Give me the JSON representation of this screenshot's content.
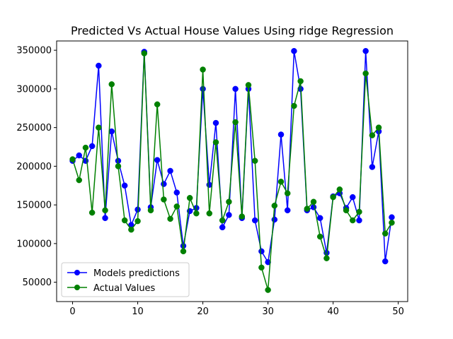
{
  "chart_data": {
    "type": "line",
    "title": "Predicted Vs Actual House Values Using ridge Regression",
    "xlabel": "",
    "ylabel": "",
    "xlim": [
      -2.45,
      51.45
    ],
    "ylim": [
      25000,
      362000
    ],
    "xticks": [
      0,
      10,
      20,
      30,
      40,
      50
    ],
    "yticks": [
      50000,
      100000,
      150000,
      200000,
      250000,
      300000,
      350000
    ],
    "ytick_labels": [
      "50000",
      "100000",
      "150000",
      "200000",
      "250000",
      "300000",
      "350000"
    ],
    "legend_position": "lower-left",
    "grid": false,
    "x": [
      0,
      1,
      2,
      3,
      4,
      5,
      6,
      7,
      8,
      9,
      10,
      11,
      12,
      13,
      14,
      15,
      16,
      17,
      18,
      19,
      20,
      21,
      22,
      23,
      24,
      25,
      26,
      27,
      28,
      29,
      30,
      31,
      32,
      33,
      34,
      35,
      36,
      37,
      38,
      39,
      40,
      41,
      42,
      43,
      44,
      45,
      46,
      47,
      48,
      49
    ],
    "series": [
      {
        "name": "Models predictions",
        "color": "#0000ff",
        "values": [
          207000,
          214000,
          207000,
          226000,
          330000,
          133000,
          245000,
          207000,
          175000,
          124000,
          144000,
          348000,
          147000,
          208000,
          177000,
          194000,
          166000,
          97000,
          142000,
          146000,
          300000,
          176000,
          256000,
          121000,
          137000,
          300000,
          133000,
          300000,
          130000,
          90000,
          76000,
          131000,
          241000,
          143000,
          349000,
          300000,
          143000,
          147000,
          133000,
          88000,
          161000,
          165000,
          146000,
          160000,
          130000,
          349000,
          199000,
          245000,
          77000,
          134000
        ]
      },
      {
        "name": "Actual Values",
        "color": "#008000",
        "values": [
          209000,
          182000,
          224000,
          140000,
          250000,
          143000,
          306000,
          200000,
          130000,
          118000,
          129000,
          346000,
          143000,
          280000,
          157000,
          132000,
          148000,
          90000,
          159000,
          139000,
          325000,
          139000,
          231000,
          130000,
          154000,
          257000,
          135000,
          305000,
          207000,
          69000,
          40000,
          149000,
          180000,
          165000,
          278000,
          310000,
          145000,
          154000,
          109000,
          81000,
          160000,
          170000,
          143000,
          130000,
          141000,
          320000,
          240000,
          250000,
          113000,
          127000
        ]
      }
    ]
  }
}
